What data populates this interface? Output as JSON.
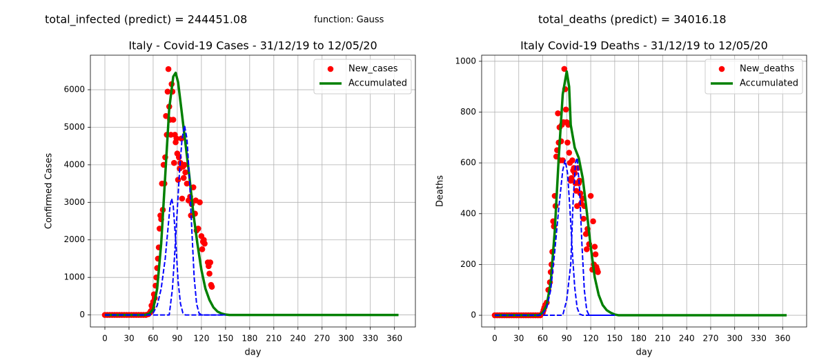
{
  "figure": {
    "infected_total": "total_infected (predict) = 244451.08",
    "function": "function: Gauss",
    "deaths_total": "total_deaths (predict) = 34016.18"
  },
  "chart_data": [
    {
      "type": "line",
      "title": "Italy - Covid-19 Cases - 31/12/19 to 12/05/20",
      "x_label": "day",
      "y_label": "Confirmed Cases",
      "xlim": [
        -18,
        386
      ],
      "ylim": [
        -320,
        6920
      ],
      "xticks": [
        0,
        30,
        60,
        90,
        120,
        150,
        180,
        210,
        240,
        270,
        300,
        330,
        360
      ],
      "yticks": [
        0,
        1000,
        2000,
        3000,
        4000,
        5000,
        6000
      ],
      "grid": true,
      "legend": "upper right",
      "series": [
        {
          "name": "New_cases",
          "kind": "scatter",
          "color": "#ff0000",
          "x": [
            0,
            3,
            6,
            9,
            12,
            15,
            18,
            21,
            24,
            27,
            30,
            33,
            36,
            39,
            42,
            45,
            48,
            51,
            54,
            56,
            57,
            58,
            59,
            60,
            61,
            62,
            63,
            64,
            65,
            66,
            67,
            68,
            69,
            70,
            71,
            72,
            73,
            74,
            75,
            76,
            77,
            78,
            79,
            80,
            81,
            82,
            83,
            84,
            85,
            86,
            87,
            88,
            89,
            90,
            91,
            92,
            93,
            94,
            95,
            96,
            97,
            98,
            99,
            100,
            102,
            104,
            106,
            107,
            108,
            110,
            112,
            113,
            114,
            116,
            118,
            120,
            121,
            122,
            123,
            124,
            128,
            129,
            130,
            131,
            132,
            133
          ],
          "values": [
            0,
            0,
            0,
            0,
            0,
            0,
            0,
            0,
            0,
            0,
            0,
            0,
            0,
            0,
            0,
            0,
            0,
            0,
            20,
            60,
            100,
            250,
            200,
            350,
            550,
            450,
            780,
            1000,
            1250,
            1500,
            1800,
            2300,
            2650,
            2550,
            3500,
            2800,
            4000,
            3500,
            4200,
            5300,
            4800,
            5950,
            6550,
            5550,
            5200,
            4800,
            6150,
            5950,
            5200,
            4050,
            4800,
            4600,
            4700,
            4300,
            3600,
            4200,
            3900,
            4050,
            4700,
            3100,
            3950,
            3650,
            4000,
            3800,
            3500,
            3050,
            3150,
            2650,
            2950,
            3400,
            2700,
            3050,
            2250,
            2300,
            3000,
            2100,
            1750,
            1950,
            2000,
            1900,
            1400,
            1300,
            1100,
            1400,
            800,
            750
          ]
        },
        {
          "name": "Accumulated",
          "kind": "line",
          "style": "solid",
          "width": 3.5,
          "color": "#008000",
          "x": [
            0,
            50,
            55,
            60,
            65,
            70,
            75,
            80,
            85,
            88,
            91,
            95,
            100,
            105,
            110,
            115,
            120,
            125,
            130,
            135,
            140,
            145,
            150,
            155,
            365
          ],
          "values": [
            0,
            0,
            30,
            150,
            700,
            1900,
            3700,
            5500,
            6350,
            6450,
            6200,
            5500,
            4600,
            3700,
            2700,
            1900,
            1200,
            700,
            400,
            200,
            90,
            40,
            10,
            0,
            0
          ]
        },
        {
          "kind": "line",
          "style": "dashed",
          "width": 2,
          "color": "#0000ff",
          "x": [
            0,
            55,
            60,
            65,
            70,
            75,
            78,
            81,
            83,
            85,
            88,
            91,
            94,
            97,
            100,
            150
          ],
          "values": [
            0,
            0,
            50,
            250,
            700,
            1500,
            2200,
            2900,
            3100,
            2900,
            2000,
            900,
            300,
            50,
            0,
            0
          ]
        },
        {
          "kind": "line",
          "style": "dashed",
          "width": 2,
          "color": "#0000ff",
          "x": [
            0,
            80,
            84,
            87,
            90,
            93,
            96,
            99,
            102,
            105,
            108,
            111,
            114,
            117,
            120,
            150
          ],
          "values": [
            0,
            0,
            700,
            1700,
            2800,
            3900,
            4700,
            5050,
            4700,
            3700,
            2300,
            1000,
            300,
            50,
            0,
            0
          ]
        }
      ]
    },
    {
      "type": "line",
      "title": "Italy Covid-19 Deaths - 31/12/19 to 12/05/20",
      "x_label": "day",
      "y_label": "Deaths",
      "xlim": [
        -16.4,
        390
      ],
      "ylim": [
        -46,
        1024
      ],
      "xticks": [
        0,
        30,
        60,
        90,
        120,
        150,
        180,
        210,
        240,
        270,
        300,
        330,
        360
      ],
      "yticks": [
        0,
        200,
        400,
        600,
        800,
        1000
      ],
      "grid": true,
      "legend": "upper right",
      "series": [
        {
          "name": "New_deaths",
          "kind": "scatter",
          "color": "#ff0000",
          "x": [
            0,
            3,
            6,
            9,
            12,
            15,
            18,
            21,
            24,
            27,
            30,
            33,
            36,
            39,
            42,
            45,
            48,
            51,
            54,
            57,
            60,
            61,
            62,
            63,
            65,
            67,
            69,
            70,
            71,
            72,
            73,
            74,
            75,
            76,
            77,
            78,
            79,
            80,
            81,
            82,
            83,
            84,
            85,
            86,
            87,
            88,
            89,
            90,
            91,
            92,
            93,
            94,
            95,
            96,
            97,
            98,
            99,
            100,
            101,
            102,
            103,
            104,
            105,
            106,
            107,
            108,
            110,
            111,
            112,
            114,
            115,
            116,
            118,
            120,
            122,
            123,
            124,
            125,
            126,
            127,
            128,
            129
          ],
          "values": [
            0,
            0,
            0,
            0,
            0,
            0,
            0,
            0,
            0,
            0,
            0,
            0,
            0,
            0,
            0,
            0,
            0,
            0,
            0,
            0,
            10,
            20,
            30,
            40,
            50,
            100,
            130,
            170,
            200,
            250,
            370,
            350,
            470,
            430,
            625,
            650,
            795,
            680,
            740,
            610,
            685,
            750,
            610,
            760,
            970,
            890,
            810,
            760,
            680,
            750,
            640,
            600,
            530,
            540,
            610,
            570,
            580,
            560,
            520,
            490,
            430,
            580,
            520,
            530,
            480,
            440,
            460,
            380,
            430,
            320,
            260,
            340,
            280,
            470,
            180,
            370,
            200,
            270,
            240,
            190,
            180,
            170
          ]
        },
        {
          "name": "Accumulated",
          "kind": "line",
          "style": "solid",
          "width": 3.5,
          "color": "#008000",
          "x": [
            0,
            55,
            60,
            65,
            70,
            75,
            80,
            85,
            90,
            93,
            95,
            100,
            105,
            110,
            115,
            120,
            125,
            130,
            135,
            140,
            145,
            150,
            155,
            365
          ],
          "values": [
            0,
            0,
            10,
            40,
            130,
            330,
            620,
            870,
            960,
            900,
            750,
            660,
            620,
            540,
            410,
            270,
            150,
            80,
            40,
            20,
            10,
            3,
            0,
            0
          ]
        },
        {
          "kind": "line",
          "style": "dashed",
          "width": 2,
          "color": "#0000ff",
          "x": [
            0,
            55,
            60,
            65,
            70,
            75,
            80,
            85,
            88,
            91,
            94,
            97,
            100,
            103,
            106,
            110,
            150
          ],
          "values": [
            0,
            0,
            5,
            30,
            100,
            250,
            420,
            570,
            610,
            560,
            420,
            250,
            110,
            30,
            5,
            0,
            0
          ]
        },
        {
          "kind": "line",
          "style": "dashed",
          "width": 2,
          "color": "#0000ff",
          "x": [
            0,
            85,
            90,
            95,
            98,
            101,
            103,
            106,
            109,
            112,
            115,
            118,
            150
          ],
          "values": [
            0,
            0,
            60,
            200,
            450,
            600,
            620,
            500,
            280,
            100,
            20,
            0,
            0
          ]
        }
      ]
    }
  ]
}
